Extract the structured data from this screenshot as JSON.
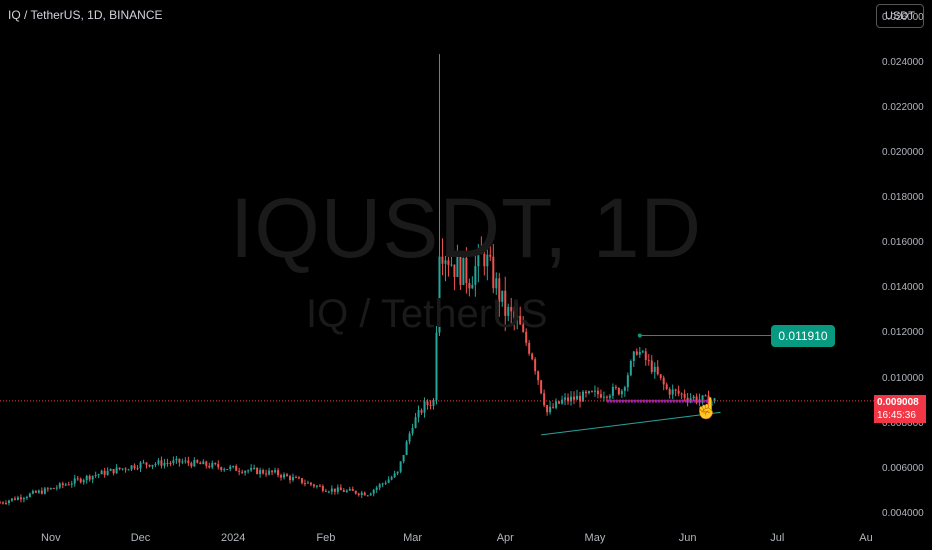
{
  "header": {
    "symbol_line": "IQ / TetherUS, 1D, BINANCE"
  },
  "watermark": {
    "line1": "IQUSDT, 1D",
    "line2": "IQ / TetherUS"
  },
  "currency_button": "USDT",
  "price_scale": [
    "0.026000",
    "0.024000",
    "0.022000",
    "0.020000",
    "0.018000",
    "0.016000",
    "0.014000",
    "0.012000",
    "0.010000",
    "0.008000",
    "0.006000",
    "0.004000"
  ],
  "time_scale": [
    "Nov",
    "Dec",
    "2024",
    "Feb",
    "Mar",
    "Apr",
    "May",
    "Jun",
    "Jul",
    "Au"
  ],
  "current_price": {
    "value": "0.009008",
    "countdown": "16:45:36"
  },
  "target_label": "0.011910",
  "hand_icon": "pointing-hand-icon",
  "colors": {
    "up": "#26a69a",
    "down": "#ef5350",
    "background": "#000000",
    "trendline": "#26a69a",
    "support": "#9c27b0",
    "current_price": "#f23645",
    "target": "#089981"
  },
  "chart_data": {
    "type": "candlestick",
    "title": "IQ / TetherUS, 1D, BINANCE",
    "ylim": [
      0.0035,
      0.0268
    ],
    "x": [
      "2023-10-15",
      "2023-11-01",
      "2023-11-15",
      "2023-12-01",
      "2023-12-15",
      "2024-01-01",
      "2024-01-15",
      "2024-02-01",
      "2024-02-15",
      "2024-02-25",
      "2024-03-01",
      "2024-03-05",
      "2024-03-08",
      "2024-03-10",
      "2024-03-15",
      "2024-03-20",
      "2024-03-25",
      "2024-04-01",
      "2024-04-05",
      "2024-04-10",
      "2024-04-15",
      "2024-04-20",
      "2024-05-01",
      "2024-05-10",
      "2024-05-15",
      "2024-05-20",
      "2024-05-25",
      "2024-06-01",
      "2024-06-08"
    ],
    "close": [
      0.0045,
      0.0051,
      0.0057,
      0.0062,
      0.0063,
      0.006,
      0.0058,
      0.0051,
      0.0049,
      0.0058,
      0.008,
      0.0088,
      0.009,
      0.016,
      0.015,
      0.0145,
      0.0155,
      0.013,
      0.0125,
      0.011,
      0.0085,
      0.009,
      0.0093,
      0.0095,
      0.0113,
      0.0105,
      0.0095,
      0.0092,
      0.009
    ],
    "high_spike": 0.0244,
    "annotations": [
      {
        "type": "trendline",
        "from": [
          "2024-04-13",
          0.0075
        ],
        "to": [
          "2024-06-12",
          0.0085
        ]
      },
      {
        "type": "horizontal",
        "from": "2024-05-05",
        "to": "2024-06-08",
        "value": 0.009
      },
      {
        "type": "target_line",
        "from": "2024-05-16",
        "to": "2024-06-20",
        "value": 0.01191
      }
    ],
    "last_price": 0.009008
  }
}
